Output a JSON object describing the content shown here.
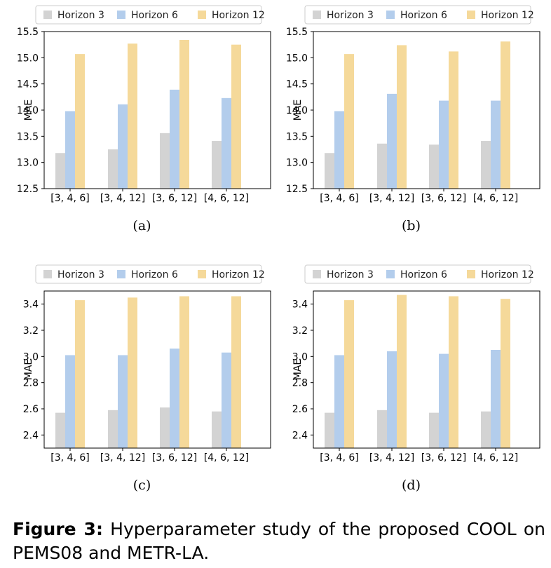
{
  "figure": {
    "label": "Figure 3:",
    "text": "Hyperparameter study of the proposed COOL on PEMS08 and METR-LA."
  },
  "colors": {
    "h3": "#d3d3d3",
    "h6": "#b3cdec",
    "h12": "#f5d99a"
  },
  "chart_data": [
    {
      "type": "bar",
      "panel_label": "(a)",
      "ylabel": "MAE",
      "ylim": [
        12.5,
        15.5
      ],
      "yticks": [
        "12.5",
        "13.0",
        "13.5",
        "14.0",
        "14.5",
        "15.0",
        "15.5"
      ],
      "yticks_values": [
        12.5,
        13.0,
        13.5,
        14.0,
        14.5,
        15.0,
        15.5
      ],
      "categories": [
        "[3, 4, 6]",
        "[3, 4, 12]",
        "[3, 6, 12]",
        "[4, 6, 12]"
      ],
      "series": [
        {
          "name": "Horizon 3",
          "values": [
            13.18,
            13.25,
            13.56,
            13.41
          ]
        },
        {
          "name": "Horizon 6",
          "values": [
            13.98,
            14.11,
            14.39,
            14.23
          ]
        },
        {
          "name": "Horizon 12",
          "values": [
            15.07,
            15.27,
            15.34,
            15.25
          ]
        }
      ]
    },
    {
      "type": "bar",
      "panel_label": "(b)",
      "ylabel": "MAE",
      "ylim": [
        12.5,
        15.5
      ],
      "yticks": [
        "12.5",
        "13.0",
        "13.5",
        "14.0",
        "14.5",
        "15.0",
        "15.5"
      ],
      "yticks_values": [
        12.5,
        13.0,
        13.5,
        14.0,
        14.5,
        15.0,
        15.5
      ],
      "categories": [
        "[3, 4, 6]",
        "[3, 4, 12]",
        "[3, 6, 12]",
        "[4, 6, 12]"
      ],
      "series": [
        {
          "name": "Horizon 3",
          "values": [
            13.18,
            13.36,
            13.34,
            13.41
          ]
        },
        {
          "name": "Horizon 6",
          "values": [
            13.98,
            14.31,
            14.18,
            14.18
          ]
        },
        {
          "name": "Horizon 12",
          "values": [
            15.07,
            15.24,
            15.12,
            15.31
          ]
        }
      ]
    },
    {
      "type": "bar",
      "panel_label": "(c)",
      "ylabel": "MAE",
      "ylim": [
        2.3,
        3.5
      ],
      "yticks": [
        "2.4",
        "2.6",
        "2.8",
        "3.0",
        "3.2",
        "3.4"
      ],
      "yticks_values": [
        2.4,
        2.6,
        2.8,
        3.0,
        3.2,
        3.4
      ],
      "categories": [
        "[3, 4, 6]",
        "[3, 4, 12]",
        "[3, 6, 12]",
        "[4, 6, 12]"
      ],
      "series": [
        {
          "name": "Horizon 3",
          "values": [
            2.57,
            2.59,
            2.61,
            2.58
          ]
        },
        {
          "name": "Horizon 6",
          "values": [
            3.01,
            3.01,
            3.06,
            3.03
          ]
        },
        {
          "name": "Horizon 12",
          "values": [
            3.43,
            3.45,
            3.46,
            3.46
          ]
        }
      ]
    },
    {
      "type": "bar",
      "panel_label": "(d)",
      "ylabel": "MAE",
      "ylim": [
        2.3,
        3.5
      ],
      "yticks": [
        "2.4",
        "2.6",
        "2.8",
        "3.0",
        "3.2",
        "3.4"
      ],
      "yticks_values": [
        2.4,
        2.6,
        2.8,
        3.0,
        3.2,
        3.4
      ],
      "categories": [
        "[3, 4, 6]",
        "[3, 4, 12]",
        "[3, 6, 12]",
        "[4, 6, 12]"
      ],
      "series": [
        {
          "name": "Horizon 3",
          "values": [
            2.57,
            2.59,
            2.57,
            2.58
          ]
        },
        {
          "name": "Horizon 6",
          "values": [
            3.01,
            3.04,
            3.02,
            3.05
          ]
        },
        {
          "name": "Horizon 12",
          "values": [
            3.43,
            3.47,
            3.46,
            3.44
          ]
        }
      ]
    }
  ]
}
